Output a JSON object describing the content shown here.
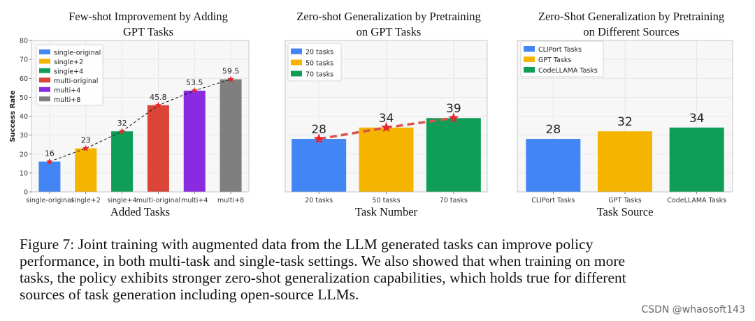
{
  "chart_data": [
    {
      "type": "bar",
      "title_lines": [
        "Few-shot Improvement by Adding",
        "GPT Tasks"
      ],
      "xlabel": "Added Tasks",
      "ylabel": "Success Rate",
      "ylim": [
        0,
        80
      ],
      "yticks": [
        "0",
        "10",
        "20",
        "30",
        "40",
        "50",
        "60",
        "70",
        "80"
      ],
      "grid": true,
      "legend_position": "top-left",
      "categories": [
        "single-original",
        "single+2",
        "single+4",
        "multi-original",
        "multi+4",
        "multi+8"
      ],
      "values": [
        16,
        23,
        32,
        45.8,
        53.5,
        59.5
      ],
      "value_labels": [
        "16",
        "23",
        "32",
        "45.8",
        "53.5",
        "59.5"
      ],
      "colors": [
        "#4285f4",
        "#f4b400",
        "#0f9d58",
        "#db4437",
        "#8a2be2",
        "#7f7f7f"
      ],
      "legend": [
        "single-original",
        "single+2",
        "single+4",
        "multi-original",
        "multi+4",
        "multi+8"
      ],
      "trend_line": {
        "style": "black dashed",
        "marker": "red star"
      }
    },
    {
      "type": "bar",
      "title_lines": [
        "Zero-shot Generalization by Pretraining",
        "on GPT Tasks"
      ],
      "xlabel": "Task Number",
      "ylabel": "",
      "ylim": [
        0,
        80
      ],
      "grid": true,
      "legend_position": "top-left",
      "categories": [
        "20 tasks",
        "50 tasks",
        "70 tasks"
      ],
      "values": [
        28,
        34,
        39
      ],
      "value_labels": [
        "28",
        "34",
        "39"
      ],
      "colors": [
        "#4285f4",
        "#f4b400",
        "#0f9d58"
      ],
      "legend": [
        "20 tasks",
        "50 tasks",
        "70 tasks"
      ],
      "trend_line": {
        "style": "red dashed",
        "marker": "red star"
      }
    },
    {
      "type": "bar",
      "title_lines": [
        "Zero-Shot Generalization by Pretraining",
        "on Different Sources"
      ],
      "xlabel": "Task Source",
      "ylabel": "",
      "ylim": [
        0,
        80
      ],
      "grid": true,
      "legend_position": "top-left",
      "categories": [
        "CLIPort Tasks",
        "GPT Tasks",
        "CodeLLAMA Tasks"
      ],
      "values": [
        28,
        32,
        34
      ],
      "value_labels": [
        "28",
        "32",
        "34"
      ],
      "colors": [
        "#4285f4",
        "#f4b400",
        "#0f9d58"
      ],
      "legend": [
        "CLIPort Tasks",
        "GPT Tasks",
        "CodeLLAMA Tasks"
      ]
    }
  ],
  "caption": {
    "lines": [
      "Figure 7: Joint training with augmented data from the LLM generated tasks can improve policy",
      "performance, in both multi-task and single-task settings. We also showed that when training on more",
      "tasks, the policy exhibits stronger zero-shot generalization capabilities, which holds true for different",
      "sources of task generation including open-source LLMs."
    ]
  },
  "watermark": "CSDN @whaosoft143"
}
